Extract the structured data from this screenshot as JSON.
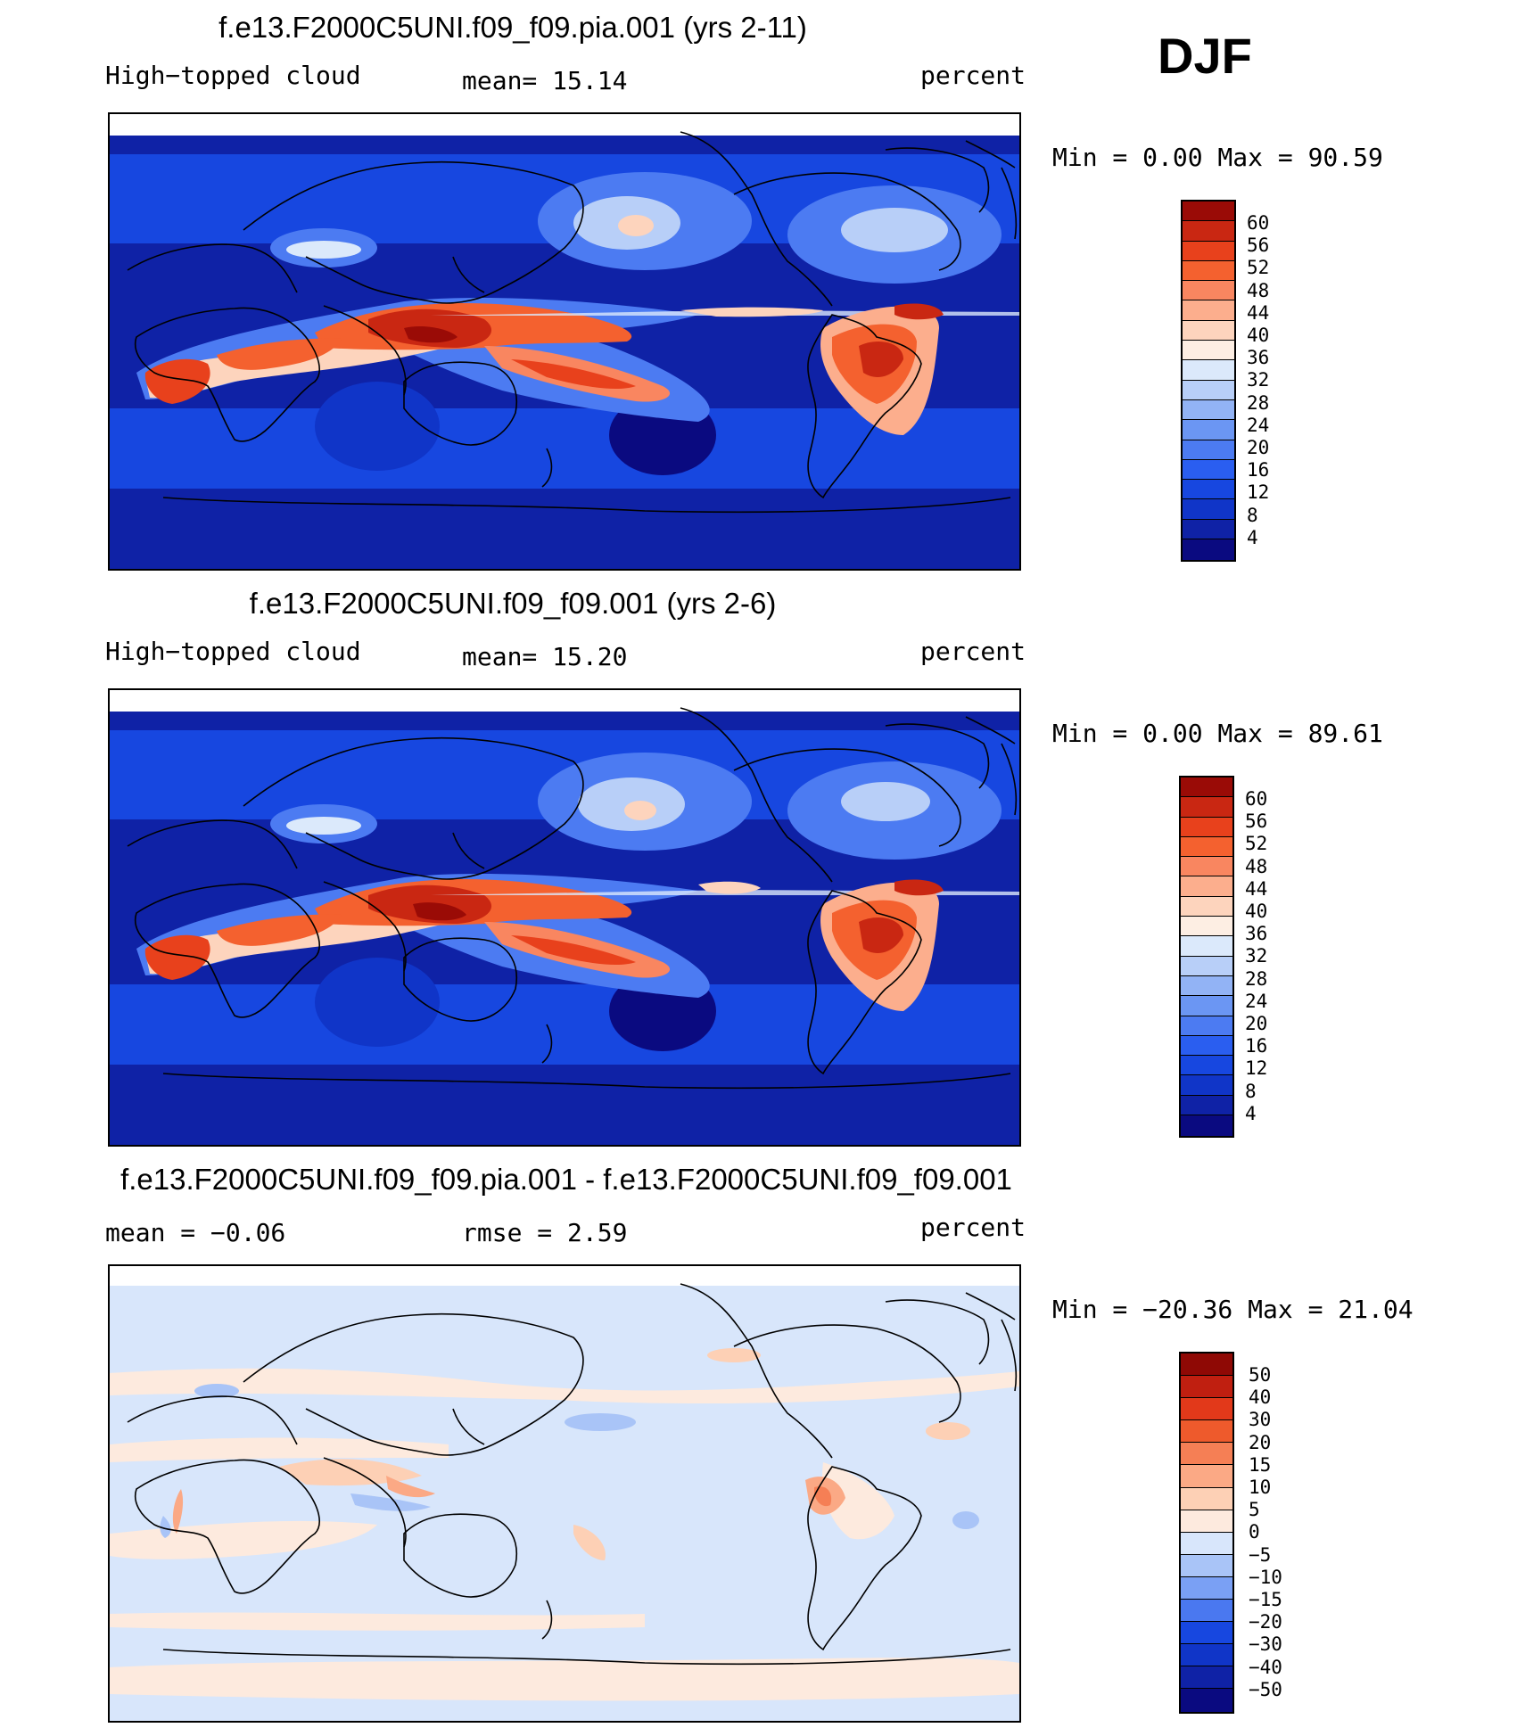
{
  "season": "DJF",
  "colormap_abs": [
    "#0a0a80",
    "#0f22a6",
    "#1035c8",
    "#1747e0",
    "#2a5ef0",
    "#4c7bf2",
    "#6b96f3",
    "#92b3f5",
    "#b8cff8",
    "#dbe9fb",
    "#fdeee3",
    "#fdd4bd",
    "#fcae8d",
    "#f98660",
    "#f4612f",
    "#e8411c",
    "#c92712",
    "#9a0b06"
  ],
  "colormap_diff": [
    "#0a0a80",
    "#0f22a6",
    "#1035c8",
    "#1747e0",
    "#4a78f0",
    "#7aa0f4",
    "#a9c4f7",
    "#d8e6fb",
    "#fdeade",
    "#fdd0b5",
    "#fba985",
    "#f57f55",
    "#ee5a2c",
    "#e2391a",
    "#c01f10",
    "#8f0905"
  ],
  "panels": [
    {
      "title": "f.e13.F2000C5UNI.f09_f09.pia.001 (yrs 2-11)",
      "left_label": "High−topped  cloud",
      "center_label": "mean=   15.14",
      "right_label": "percent",
      "minmax": "Min  =     0.00  Max  =    90.59",
      "colorbar_labels": [
        "60",
        "56",
        "52",
        "48",
        "44",
        "40",
        "36",
        "32",
        "28",
        "24",
        "20",
        "16",
        "12",
        "8",
        "4"
      ]
    },
    {
      "title": "f.e13.F2000C5UNI.f09_f09.001 (yrs 2-6)",
      "left_label": "High−topped  cloud",
      "center_label": "mean=   15.20",
      "right_label": "percent",
      "minmax": "Min  =     0.00  Max  =    89.61",
      "colorbar_labels": [
        "60",
        "56",
        "52",
        "48",
        "44",
        "40",
        "36",
        "32",
        "28",
        "24",
        "20",
        "16",
        "12",
        "8",
        "4"
      ]
    },
    {
      "title": "f.e13.F2000C5UNI.f09_f09.pia.001 - f.e13.F2000C5UNI.f09_f09.001",
      "left_label": "mean  =    −0.06",
      "center_label": "rmse  =     2.59",
      "right_label": "percent",
      "minmax": "Min  = −20.36  Max  =    21.04",
      "colorbar_labels": [
        "50",
        "40",
        "30",
        "20",
        "15",
        "10",
        "5",
        "0",
        "−5",
        "−10",
        "−15",
        "−20",
        "−30",
        "−40",
        "−50"
      ]
    }
  ]
}
